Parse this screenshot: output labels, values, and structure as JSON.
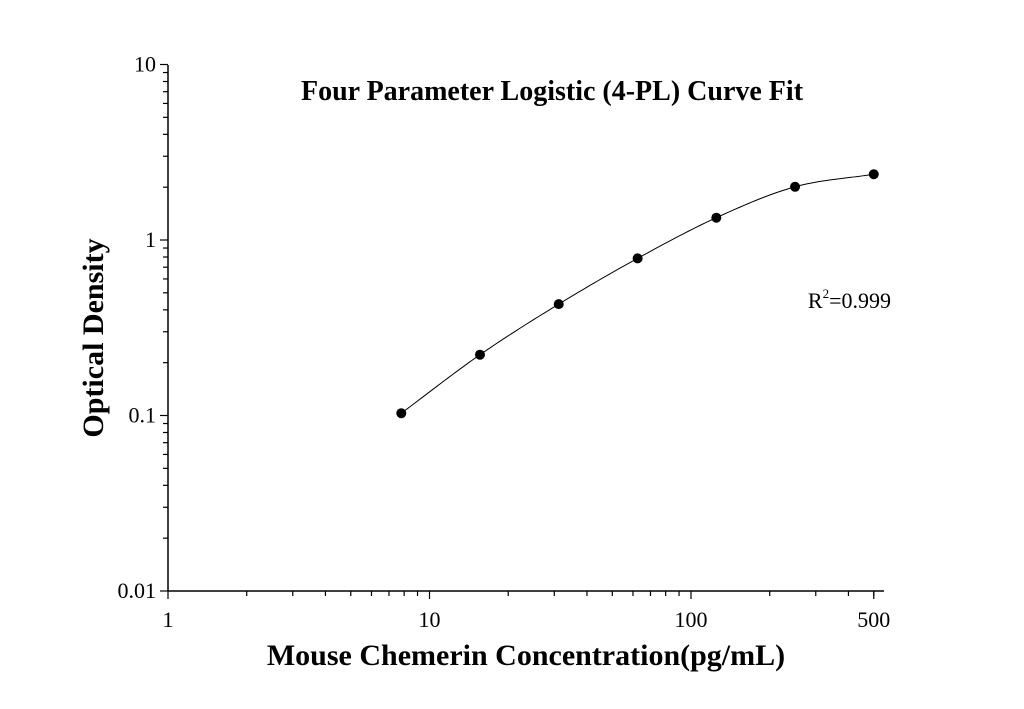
{
  "chart_data": {
    "type": "scatter",
    "title": "Four Parameter Logistic (4-PL) Curve Fit",
    "xlabel": "Mouse Chemerin Concentration(pg/mL)",
    "ylabel": "Optical Density",
    "x_scale": "log",
    "y_scale": "log",
    "xlim": [
      1,
      500
    ],
    "ylim": [
      0.01,
      10
    ],
    "x_ticks": [
      {
        "value": 1,
        "label": "1"
      },
      {
        "value": 10,
        "label": "10"
      },
      {
        "value": 100,
        "label": "100"
      },
      {
        "value": 500,
        "label": "500"
      }
    ],
    "y_ticks": [
      {
        "value": 0.01,
        "label": "0.01"
      },
      {
        "value": 0.1,
        "label": "0.1"
      },
      {
        "value": 1,
        "label": "1"
      },
      {
        "value": 10,
        "label": "10"
      }
    ],
    "series": [
      {
        "x": [
          7.8,
          15.6,
          31.2,
          62.5,
          125,
          250,
          500
        ],
        "y": [
          0.103,
          0.222,
          0.431,
          0.786,
          1.34,
          2.01,
          2.37
        ]
      }
    ],
    "fit_curve": {
      "model": "4-PL",
      "color": "#000000"
    },
    "annotation": {
      "label": "R",
      "superscript": "2",
      "value": "=0.999",
      "x": 280,
      "y": 0.41
    },
    "marker_color": "#000000",
    "grid": false,
    "legend": "none"
  }
}
